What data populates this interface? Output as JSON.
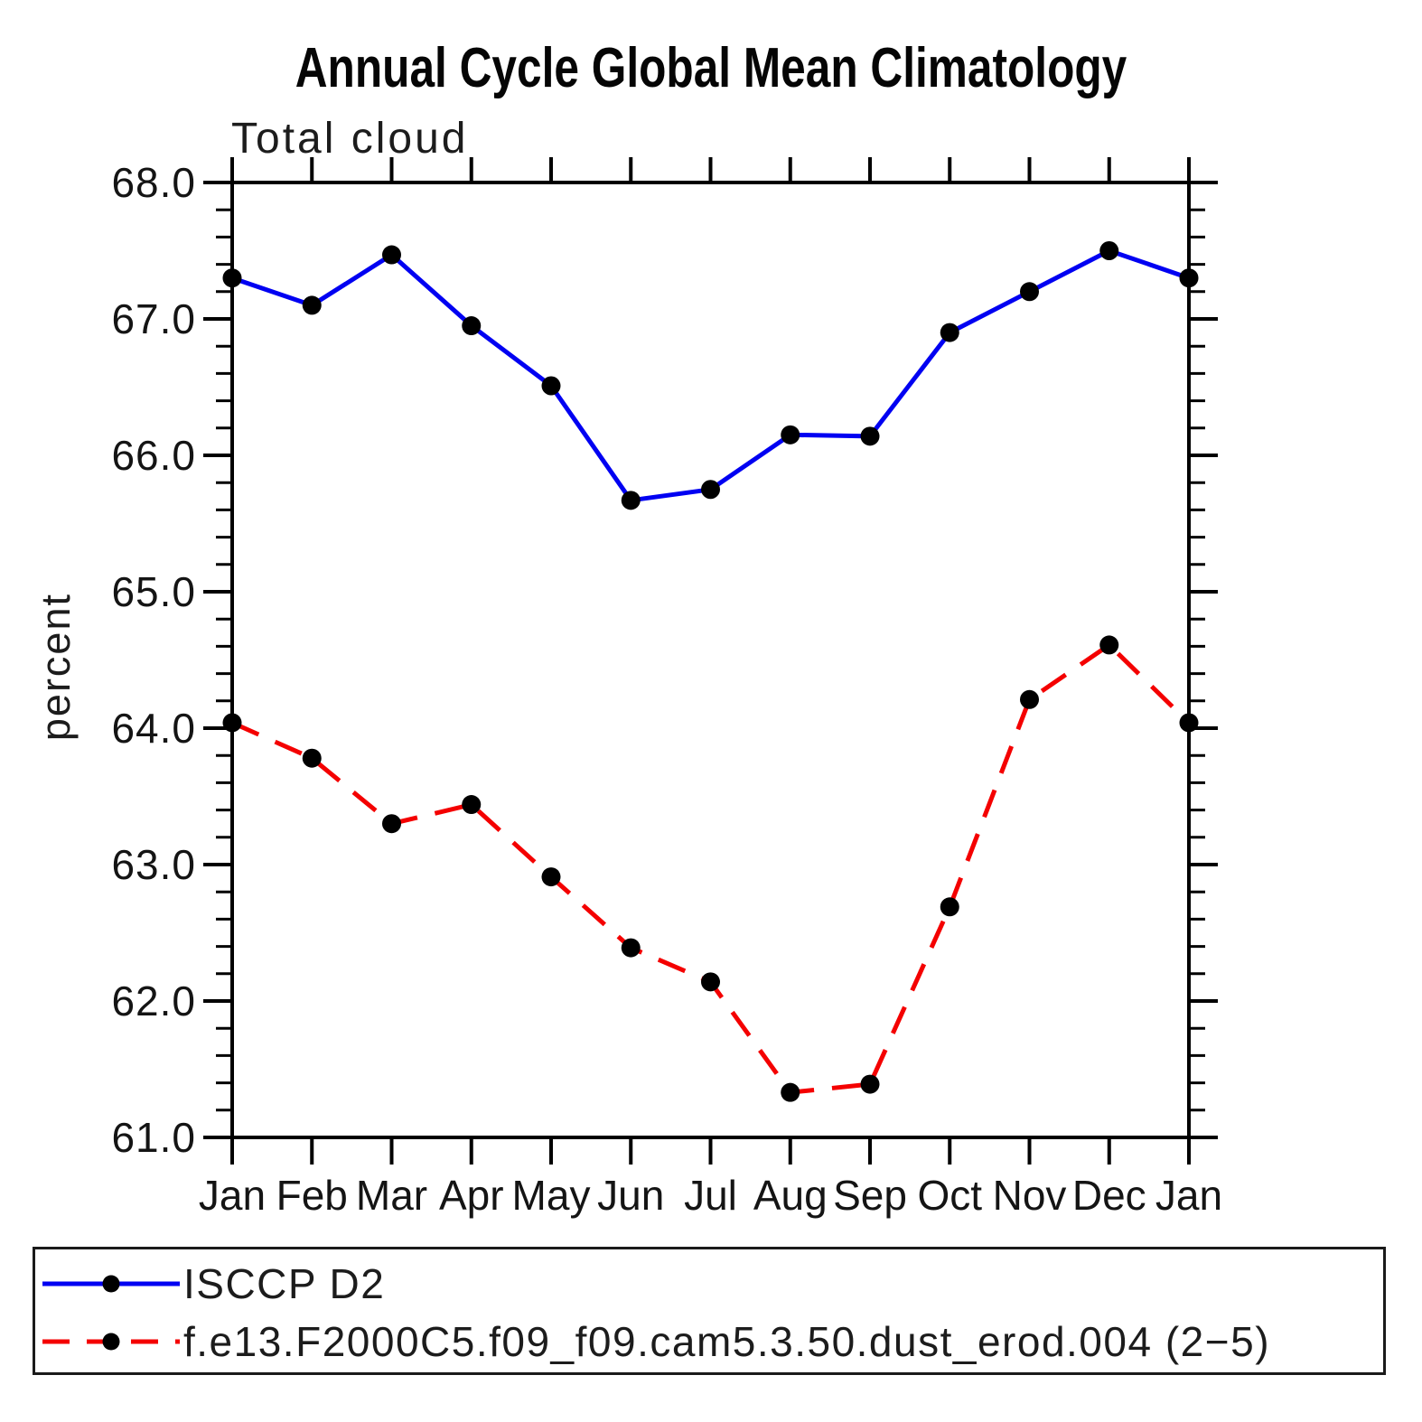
{
  "header": {
    "title": "Annual Cycle Global Mean Climatology",
    "subtitle": "Total cloud"
  },
  "chart_data": {
    "type": "line",
    "title": "Annual Cycle Global Mean Climatology",
    "subtitle": "Total cloud",
    "xlabel": "",
    "ylabel": "percent",
    "categories": [
      "Jan",
      "Feb",
      "Mar",
      "Apr",
      "May",
      "Jun",
      "Jul",
      "Aug",
      "Sep",
      "Oct",
      "Nov",
      "Dec",
      "Jan"
    ],
    "series": [
      {
        "name": "ISCCP D2",
        "color": "#0000f2",
        "line_style": "solid",
        "marker": "filled-circle",
        "marker_color": "#000000",
        "values": [
          67.3,
          67.1,
          67.47,
          66.95,
          66.51,
          65.67,
          65.75,
          66.15,
          66.14,
          66.9,
          67.2,
          67.5,
          67.3
        ]
      },
      {
        "name": "f.e13.F2000C5.f09_f09.cam5.3.50.dust_erod.004 (2−5)",
        "color": "#f40000",
        "line_style": "dashed",
        "marker": "filled-circle",
        "marker_color": "#000000",
        "values": [
          64.04,
          63.78,
          63.3,
          63.44,
          62.91,
          62.39,
          62.14,
          61.33,
          61.39,
          62.69,
          64.21,
          64.61,
          64.04
        ]
      }
    ],
    "ylim": [
      61.0,
      68.0
    ],
    "ytick_major_step": 1.0,
    "ytick_minor_step": 0.2,
    "ytick_labels": [
      "68.0",
      "67.0",
      "66.0",
      "65.0",
      "64.0",
      "63.0",
      "62.0",
      "61.0"
    ],
    "grid": false,
    "legend_position": "bottom-left"
  }
}
